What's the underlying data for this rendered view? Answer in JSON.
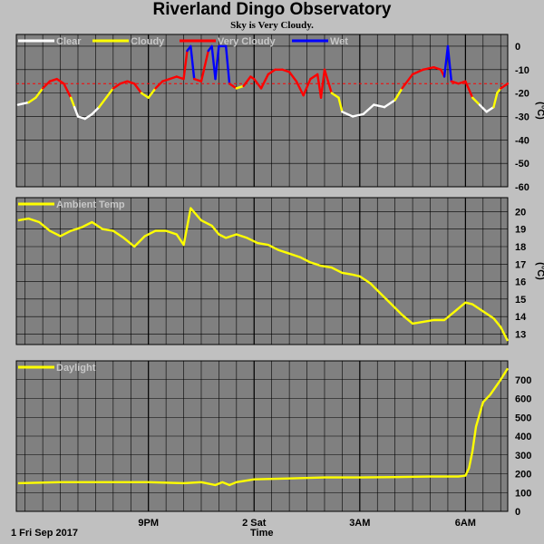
{
  "title": "Riverland Dingo Observatory",
  "subtitle": "Sky is Very Cloudy.",
  "footer": {
    "date": "1 Fri Sep 2017",
    "xlabel": "Time"
  },
  "chart_data": [
    {
      "type": "line",
      "ylabel": "(°C)",
      "ylim": [
        -60,
        5
      ],
      "yticks": [
        0,
        -10,
        -20,
        -30,
        -40,
        -50,
        -60
      ],
      "x_range": [
        17.25,
        31.2
      ],
      "xticks": [
        {
          "label": "9PM",
          "x": 21
        },
        {
          "label": "2 Sat",
          "x": 24
        },
        {
          "label": "3AM",
          "x": 27
        },
        {
          "label": "6AM",
          "x": 30
        }
      ],
      "legend": [
        "Clear",
        "Cloudy",
        "Very Cloudy",
        "Wet"
      ],
      "colors": {
        "Clear": "#ffffff",
        "Cloudy": "#ffff00",
        "Very Cloudy": "#ff0000",
        "Wet": "#0000ff",
        "threshold": "#ff0000"
      },
      "threshold": -16,
      "series": [
        {
          "values": [
            [
              17.3,
              -25
            ],
            [
              17.6,
              -24
            ],
            [
              17.8,
              -22
            ],
            [
              18.0,
              -18
            ],
            [
              18.2,
              -15
            ],
            [
              18.4,
              -14
            ],
            [
              18.6,
              -16
            ],
            [
              18.8,
              -22
            ],
            [
              18.9,
              -26
            ],
            [
              19.0,
              -30
            ],
            [
              19.2,
              -31
            ],
            [
              19.4,
              -29
            ],
            [
              19.6,
              -26
            ],
            [
              19.8,
              -22
            ],
            [
              20.0,
              -18
            ],
            [
              20.2,
              -16
            ],
            [
              20.4,
              -15
            ],
            [
              20.6,
              -16
            ],
            [
              20.8,
              -20
            ],
            [
              21.0,
              -22
            ],
            [
              21.2,
              -18
            ],
            [
              21.4,
              -15
            ],
            [
              21.6,
              -14
            ],
            [
              21.8,
              -13
            ],
            [
              22.0,
              -14
            ],
            [
              22.1,
              -2
            ],
            [
              22.2,
              0
            ],
            [
              22.3,
              -14
            ],
            [
              22.5,
              -15
            ],
            [
              22.7,
              -2
            ],
            [
              22.8,
              0
            ],
            [
              22.9,
              -14
            ],
            [
              23.0,
              0
            ],
            [
              23.2,
              0
            ],
            [
              23.3,
              -16
            ],
            [
              23.5,
              -18
            ],
            [
              23.7,
              -17
            ],
            [
              23.9,
              -13
            ],
            [
              24.0,
              -14
            ],
            [
              24.2,
              -18
            ],
            [
              24.4,
              -12
            ],
            [
              24.6,
              -10
            ],
            [
              24.8,
              -10
            ],
            [
              25.0,
              -11
            ],
            [
              25.2,
              -15
            ],
            [
              25.4,
              -21
            ],
            [
              25.6,
              -14
            ],
            [
              25.8,
              -12
            ],
            [
              25.9,
              -22
            ],
            [
              26.0,
              -10
            ],
            [
              26.2,
              -20
            ],
            [
              26.4,
              -22
            ],
            [
              26.5,
              -28
            ],
            [
              26.8,
              -30
            ],
            [
              27.1,
              -29
            ],
            [
              27.4,
              -25
            ],
            [
              27.7,
              -26
            ],
            [
              28.0,
              -23
            ],
            [
              28.2,
              -18
            ],
            [
              28.5,
              -12
            ],
            [
              28.8,
              -10
            ],
            [
              29.1,
              -9
            ],
            [
              29.3,
              -10
            ],
            [
              29.4,
              -13
            ],
            [
              29.5,
              0
            ],
            [
              29.6,
              -15
            ],
            [
              29.8,
              -16
            ],
            [
              30.0,
              -15
            ],
            [
              30.2,
              -22
            ],
            [
              30.4,
              -25
            ],
            [
              30.6,
              -28
            ],
            [
              30.8,
              -26
            ],
            [
              30.9,
              -20
            ],
            [
              31.0,
              -18
            ],
            [
              31.2,
              -16
            ]
          ]
        }
      ]
    },
    {
      "type": "line",
      "ylabel": "(°C)",
      "ylim": [
        12.4,
        20.8
      ],
      "yticks": [
        20,
        19,
        18,
        17,
        16,
        15,
        14,
        13
      ],
      "x_range": [
        17.25,
        31.2
      ],
      "xticks": [
        {
          "label": "9PM",
          "x": 21
        },
        {
          "label": "2 Sat",
          "x": 24
        },
        {
          "label": "3AM",
          "x": 27
        },
        {
          "label": "6AM",
          "x": 30
        }
      ],
      "legend": [
        "Ambient Temp"
      ],
      "colors": {
        "Ambient Temp": "#ffff00"
      },
      "series": [
        {
          "name": "Ambient Temp",
          "values": [
            [
              17.3,
              19.5
            ],
            [
              17.6,
              19.6
            ],
            [
              17.9,
              19.4
            ],
            [
              18.2,
              18.9
            ],
            [
              18.5,
              18.6
            ],
            [
              18.8,
              18.9
            ],
            [
              19.1,
              19.1
            ],
            [
              19.4,
              19.4
            ],
            [
              19.7,
              19.0
            ],
            [
              20.0,
              18.9
            ],
            [
              20.3,
              18.5
            ],
            [
              20.6,
              18.0
            ],
            [
              20.9,
              18.6
            ],
            [
              21.2,
              18.9
            ],
            [
              21.5,
              18.9
            ],
            [
              21.8,
              18.7
            ],
            [
              22.0,
              18.1
            ],
            [
              22.2,
              20.2
            ],
            [
              22.5,
              19.5
            ],
            [
              22.8,
              19.2
            ],
            [
              23.0,
              18.7
            ],
            [
              23.2,
              18.5
            ],
            [
              23.5,
              18.7
            ],
            [
              23.8,
              18.5
            ],
            [
              24.1,
              18.2
            ],
            [
              24.4,
              18.1
            ],
            [
              24.7,
              17.8
            ],
            [
              25.0,
              17.6
            ],
            [
              25.3,
              17.4
            ],
            [
              25.6,
              17.1
            ],
            [
              25.9,
              16.9
            ],
            [
              26.2,
              16.8
            ],
            [
              26.5,
              16.5
            ],
            [
              26.8,
              16.4
            ],
            [
              27.0,
              16.3
            ],
            [
              27.3,
              15.9
            ],
            [
              27.6,
              15.3
            ],
            [
              27.9,
              14.7
            ],
            [
              28.2,
              14.1
            ],
            [
              28.5,
              13.6
            ],
            [
              28.8,
              13.7
            ],
            [
              29.1,
              13.8
            ],
            [
              29.4,
              13.8
            ],
            [
              29.7,
              14.3
            ],
            [
              30.0,
              14.8
            ],
            [
              30.2,
              14.7
            ],
            [
              30.5,
              14.3
            ],
            [
              30.8,
              13.9
            ],
            [
              31.0,
              13.4
            ],
            [
              31.2,
              12.6
            ]
          ]
        }
      ]
    },
    {
      "type": "line",
      "ylim": [
        0,
        800
      ],
      "yticks": [
        700,
        600,
        500,
        400,
        300,
        200,
        100,
        0
      ],
      "x_range": [
        17.25,
        31.2
      ],
      "xticks": [
        {
          "label": "9PM",
          "x": 21
        },
        {
          "label": "2 Sat",
          "x": 24
        },
        {
          "label": "3AM",
          "x": 27
        },
        {
          "label": "6AM",
          "x": 30
        }
      ],
      "legend": [
        "Daylight"
      ],
      "colors": {
        "Daylight": "#ffff00"
      },
      "series": [
        {
          "name": "Daylight",
          "values": [
            [
              17.3,
              150
            ],
            [
              18.5,
              155
            ],
            [
              19.5,
              155
            ],
            [
              21.0,
              155
            ],
            [
              22.0,
              150
            ],
            [
              22.5,
              155
            ],
            [
              22.9,
              140
            ],
            [
              23.1,
              155
            ],
            [
              23.3,
              140
            ],
            [
              23.5,
              155
            ],
            [
              24.0,
              170
            ],
            [
              25.0,
              175
            ],
            [
              26.0,
              180
            ],
            [
              27.0,
              180
            ],
            [
              28.0,
              182
            ],
            [
              29.0,
              185
            ],
            [
              29.8,
              185
            ],
            [
              30.0,
              190
            ],
            [
              30.1,
              230
            ],
            [
              30.2,
              320
            ],
            [
              30.3,
              450
            ],
            [
              30.5,
              580
            ],
            [
              30.7,
              620
            ],
            [
              31.0,
              700
            ],
            [
              31.2,
              760
            ]
          ]
        }
      ]
    }
  ]
}
